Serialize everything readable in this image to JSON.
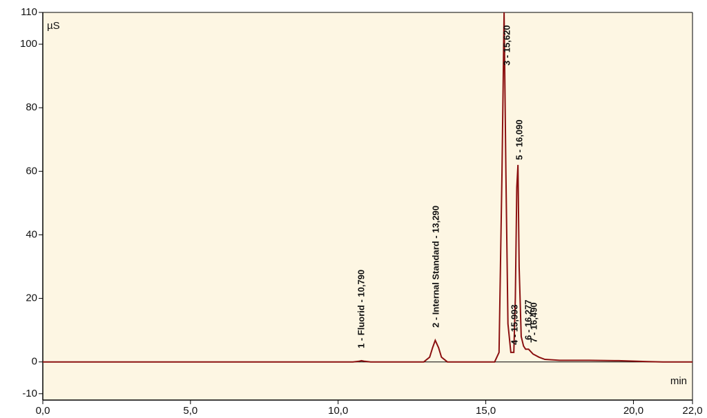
{
  "chart_data": {
    "type": "line",
    "y_unit": "µS",
    "x_unit": "min",
    "x": [
      0,
      10.5,
      10.7,
      10.79,
      10.9,
      11.1,
      12.9,
      13.1,
      13.2,
      13.29,
      13.4,
      13.5,
      13.7,
      15.3,
      15.45,
      15.55,
      15.62,
      15.68,
      15.75,
      15.85,
      15.95,
      16.0,
      16.05,
      16.09,
      16.13,
      16.2,
      16.28,
      16.35,
      16.45,
      16.6,
      16.8,
      17.0,
      17.5,
      18.5,
      19.5,
      20.5,
      21.0,
      22.0
    ],
    "series": [
      {
        "color": "#8b1010",
        "values": [
          0,
          0,
          0.2,
          0.4,
          0.2,
          0,
          0,
          1.5,
          4.5,
          6.8,
          4.5,
          1.5,
          0,
          0,
          3,
          60,
          110,
          60,
          12,
          3,
          3,
          20,
          55,
          62,
          30,
          8,
          5,
          4,
          4,
          2.5,
          1.5,
          0.8,
          0.5,
          0.5,
          0.4,
          0.1,
          0,
          0
        ]
      }
    ],
    "annotations": [
      "1 - Fluorid - 10,790",
      "2 - Internal Standard - 13,290",
      "3 - 15,620",
      "4 - 15,993",
      "5 - 16,090",
      "6 - 16,277",
      "7 - 16,490"
    ],
    "xlim": [
      0,
      22
    ],
    "ylim": [
      -12,
      110
    ],
    "xticks": [
      {
        "value": 0,
        "label": "0,0"
      },
      {
        "value": 5,
        "label": "5,0"
      },
      {
        "value": 10,
        "label": "10,0"
      },
      {
        "value": 15,
        "label": "15,0"
      },
      {
        "value": 20,
        "label": "20,0"
      },
      {
        "value": 22,
        "label": "22,0"
      }
    ],
    "yticks": [
      -10,
      0,
      20,
      40,
      60,
      80,
      100,
      110
    ],
    "plot_background": "#fdf6e3"
  }
}
